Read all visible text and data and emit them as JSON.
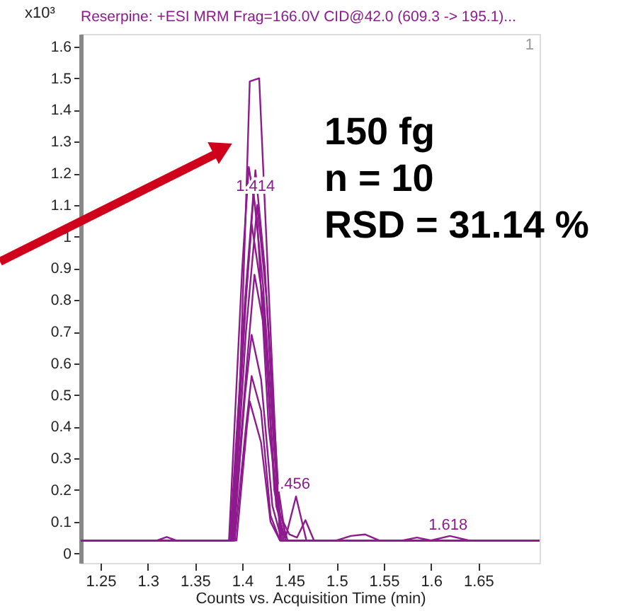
{
  "chart_data": {
    "type": "line",
    "title": "Reserpine: +ESI MRM Frag=166.0V CID@42.0 (609.3 -> 195.1)...",
    "xlabel": "Counts vs. Acquisition Time (min)",
    "ylabel": "x10³",
    "xlim": [
      1.229,
      1.715
    ],
    "ylim": [
      -0.03,
      1.64
    ],
    "xticks": [
      1.25,
      1.3,
      1.35,
      1.4,
      1.45,
      1.5,
      1.55,
      1.6,
      1.65
    ],
    "yticks": [
      0,
      0.1,
      0.2,
      0.3,
      0.4,
      0.5,
      0.6,
      0.7,
      0.8,
      0.9,
      1,
      1.1,
      1.2,
      1.3,
      1.4,
      1.5,
      1.6
    ],
    "grid": false,
    "legend": false,
    "marker": "none",
    "line_style": "solid",
    "series": [
      {
        "color": "#8e1b8e",
        "x": [
          1.229,
          1.392,
          1.404,
          1.408,
          1.418,
          1.424,
          1.44,
          1.715
        ],
        "values": [
          0.041,
          0.041,
          1.1,
          1.49,
          1.5,
          1.1,
          0.041,
          0.041
        ]
      },
      {
        "color": "#8e1b8e",
        "x": [
          1.229,
          1.386,
          1.4,
          1.407,
          1.416,
          1.428,
          1.442,
          1.715
        ],
        "values": [
          0.041,
          0.041,
          0.9,
          1.22,
          1.05,
          0.4,
          0.041,
          0.041
        ]
      },
      {
        "color": "#8e1b8e",
        "x": [
          1.229,
          1.389,
          1.404,
          1.414,
          1.424,
          1.436,
          1.446,
          1.457,
          1.468,
          1.715
        ],
        "values": [
          0.041,
          0.041,
          0.8,
          1.21,
          0.9,
          0.25,
          0.05,
          0.18,
          0.041,
          0.041
        ]
      },
      {
        "color": "#8e1b8e",
        "x": [
          1.229,
          1.388,
          1.403,
          1.412,
          1.422,
          1.438,
          1.448,
          1.715
        ],
        "values": [
          0.041,
          0.041,
          0.8,
          1.14,
          0.85,
          0.15,
          0.041,
          0.041
        ]
      },
      {
        "color": "#8e1b8e",
        "x": [
          1.229,
          1.39,
          1.404,
          1.416,
          1.426,
          1.44,
          1.45,
          1.458,
          1.467,
          1.476,
          1.715
        ],
        "values": [
          0.041,
          0.041,
          0.7,
          1.1,
          0.8,
          0.12,
          0.06,
          0.05,
          0.105,
          0.041,
          0.041
        ]
      },
      {
        "color": "#8e1b8e",
        "x": [
          1.229,
          1.387,
          1.402,
          1.41,
          1.422,
          1.434,
          1.444,
          1.715
        ],
        "values": [
          0.041,
          0.041,
          0.75,
          1.04,
          0.8,
          0.2,
          0.041,
          0.041
        ]
      },
      {
        "color": "#8e1b8e",
        "x": [
          1.229,
          1.39,
          1.405,
          1.413,
          1.424,
          1.436,
          1.446,
          1.715
        ],
        "values": [
          0.041,
          0.041,
          0.6,
          0.88,
          0.7,
          0.15,
          0.041,
          0.041
        ]
      },
      {
        "color": "#8e1b8e",
        "x": [
          1.229,
          1.31,
          1.32,
          1.33,
          1.391,
          1.403,
          1.41,
          1.42,
          1.432,
          1.442,
          1.715
        ],
        "values": [
          0.041,
          0.041,
          0.052,
          0.041,
          0.041,
          0.5,
          0.69,
          0.55,
          0.15,
          0.041,
          0.041
        ]
      },
      {
        "color": "#8e1b8e",
        "x": [
          1.229,
          1.392,
          1.404,
          1.41,
          1.42,
          1.43,
          1.44,
          1.5,
          1.515,
          1.53,
          1.545,
          1.6,
          1.62,
          1.64,
          1.715
        ],
        "values": [
          0.041,
          0.041,
          0.4,
          0.56,
          0.45,
          0.12,
          0.041,
          0.041,
          0.055,
          0.06,
          0.041,
          0.041,
          0.055,
          0.041,
          0.041
        ]
      },
      {
        "color": "#8e1b8e",
        "x": [
          1.229,
          1.394,
          1.405,
          1.408,
          1.42,
          1.43,
          1.44,
          1.57,
          1.585,
          1.6,
          1.715
        ],
        "values": [
          0.041,
          0.041,
          0.4,
          0.48,
          0.35,
          0.1,
          0.041,
          0.041,
          0.05,
          0.041,
          0.041
        ]
      }
    ],
    "annotations": [
      {
        "text": "1.414",
        "x": 1.414,
        "y": 1.14
      },
      {
        "text": ".456",
        "x": 1.456,
        "y": 0.2
      },
      {
        "text": "1.618",
        "x": 1.618,
        "y": 0.07
      },
      "150 fg",
      "n = 10",
      "RSD = 31.14 %",
      "1"
    ]
  }
}
